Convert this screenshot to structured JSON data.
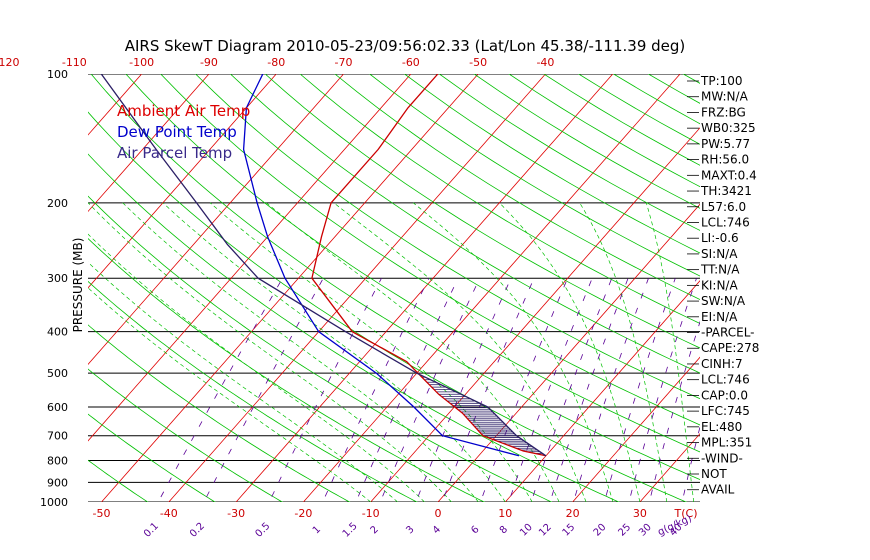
{
  "chart_data": {
    "type": "line",
    "title": "AIRS SkewT Diagram 2010-05-23/09:56:02.33 (Lat/Lon 45.38/-111.39 deg)",
    "ylabel": "PRESSURE (MB)",
    "pressure_ticks": [
      100,
      200,
      300,
      400,
      500,
      600,
      700,
      800,
      900,
      1000
    ],
    "top_temp_ticks": [
      -120,
      -110,
      -100,
      -90,
      -80,
      -70,
      -60,
      -50,
      -40
    ],
    "bottom_temp_ticks": [
      -50,
      -40,
      -30,
      -20,
      -10,
      0,
      10,
      20,
      30
    ],
    "bottom_unit_label": "T(C)",
    "mixing_ratio_labels": [
      "0.1",
      "0.2",
      "0.5",
      "1",
      "1.5",
      "2",
      "3",
      "4",
      "6",
      "8",
      "10",
      "12",
      "15",
      "20",
      "25",
      "30",
      "40"
    ],
    "mixing_ratio_unit": "g(g/kg)",
    "ylim": [
      1000,
      100
    ],
    "xlim_bottom_c": [
      -50,
      40
    ],
    "grid": true,
    "legend_position": "top-left",
    "legend": [
      {
        "label": "Ambient Air Temp",
        "color": "#dd0000"
      },
      {
        "label": "Dew Point Temp",
        "color": "#0000cc"
      },
      {
        "label": "Air Parcel Temp",
        "color": "#3a2a8a"
      }
    ],
    "series": [
      {
        "name": "Ambient Air Temp",
        "color": "#cc0000",
        "points": [
          [
            780,
            10.0
          ],
          [
            760,
            6.0
          ],
          [
            700,
            -2.0
          ],
          [
            620,
            -8.0
          ],
          [
            560,
            -14.0
          ],
          [
            470,
            -23.0
          ],
          [
            400,
            -35.0
          ],
          [
            300,
            -48.0
          ],
          [
            240,
            -52.0
          ],
          [
            200,
            -55.0
          ],
          [
            150,
            -55.0
          ],
          [
            120,
            -56.0
          ],
          [
            100,
            -56.0
          ]
        ]
      },
      {
        "name": "Dew Point Temp",
        "color": "#0000cc",
        "points": [
          [
            780,
            6.0
          ],
          [
            700,
            -8.0
          ],
          [
            600,
            -16.0
          ],
          [
            500,
            -26.0
          ],
          [
            400,
            -40.0
          ],
          [
            300,
            -52.0
          ],
          [
            240,
            -60.0
          ],
          [
            200,
            -66.0
          ],
          [
            150,
            -75.0
          ],
          [
            120,
            -80.0
          ],
          [
            100,
            -82.0
          ]
        ]
      },
      {
        "name": "Air Parcel Temp",
        "color": "#2b1f66",
        "points": [
          [
            780,
            10.0
          ],
          [
            700,
            3.0
          ],
          [
            600,
            -5.0
          ],
          [
            500,
            -20.0
          ],
          [
            400,
            -36.0
          ],
          [
            300,
            -56.0
          ],
          [
            250,
            -65.0
          ],
          [
            200,
            -75.0
          ],
          [
            150,
            -88.0
          ],
          [
            100,
            -106.0
          ]
        ]
      }
    ]
  },
  "side_panel": [
    "TP:100",
    "MW:N/A",
    "FRZ:BG",
    "WB0:325",
    "PW:5.77",
    "RH:56.0",
    "MAXT:0.4",
    "TH:3421",
    "L57:6.0",
    "LCL:746",
    "LI:-0.6",
    "SI:N/A",
    "TT:N/A",
    "KI:N/A",
    "SW:N/A",
    "EI:N/A",
    "-PARCEL-",
    "CAPE:278",
    "CINH:7",
    "LCL:746",
    "CAP:0.0",
    "LFC:745",
    "EL:480",
    "MPL:351",
    "-WIND-",
    "NOT",
    "AVAIL"
  ],
  "colors": {
    "isotherm": "#e00000",
    "dry_adiabat": "#00c000",
    "moist_adiabat": "#00c000",
    "mixing_ratio": "#5a0096",
    "isobar": "#000000"
  }
}
